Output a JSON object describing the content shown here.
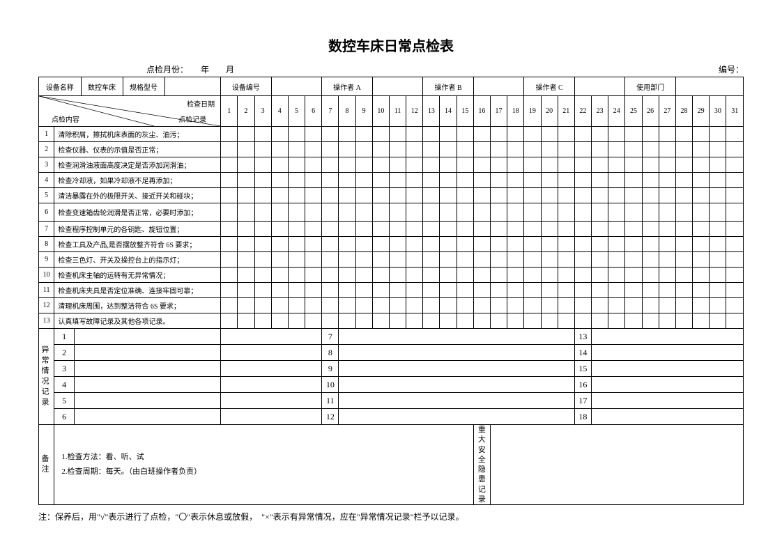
{
  "title": "数控车床日常点检表",
  "meta": {
    "month_label": "点检月份：　　年　　月",
    "serial_label": "编号："
  },
  "header": {
    "device_name_label": "设备名称",
    "device_name_value": "数控车床",
    "spec_model_label": "规格型号",
    "device_no_label": "设备编号",
    "operator_a": "操作者 A",
    "operator_b": "操作者 B",
    "operator_c": "操作者 C",
    "department": "使用部门"
  },
  "diagonal": {
    "top": "检查日期",
    "left": "点检内容",
    "bottom": "点检记录"
  },
  "days": [
    "1",
    "2",
    "3",
    "4",
    "5",
    "6",
    "7",
    "8",
    "9",
    "10",
    "11",
    "12",
    "13",
    "14",
    "15",
    "16",
    "17",
    "18",
    "19",
    "20",
    "21",
    "22",
    "23",
    "24",
    "25",
    "26",
    "27",
    "28",
    "29",
    "30",
    "31"
  ],
  "items": [
    "清除积屑，擦拭机床表面的灰尘、油污；",
    "检查仪器、仪表的示值是否正常；",
    "检查润滑油液面高度决定是否添加润滑油；",
    "检查冷却液，如果冷却液不足再添加；",
    "清洁暴露在外的极限开关、接近开关和碰块；",
    "检查变速箱齿轮润滑是否正常，必要时添加；",
    "检查程序控制单元的各钥匙、旋钮位置；",
    "检查工具及产品,是否摆放整齐符合 6S 要求；",
    "检查三色灯、开关及操控台上的指示灯；",
    "检查机床主轴的运转有无异常情况；",
    "检查机床夹具是否定位准确、连接牢固可靠；",
    "清理机床周围，达到整洁符合 6S 要求；",
    "认真填写故障记录及其他各项记录。"
  ],
  "anomaly": {
    "label": "异常情况记录",
    "cols": [
      [
        "1",
        "2",
        "3",
        "4",
        "5",
        "6"
      ],
      [
        "7",
        "8",
        "9",
        "10",
        "11",
        "12"
      ],
      [
        "13",
        "14",
        "15",
        "16",
        "17",
        "18"
      ]
    ]
  },
  "remark": {
    "label": "备注",
    "line1": "1.检查方法：看、听、试",
    "line2": "2.检查周期：每天。（由白班操作者负责）"
  },
  "safety_label": "重大安全隐患记录",
  "note": "注：保养后，用\"√\"表示进行了点检，\"〇\"表示休息或放假，　\"×\"表示有异常情况，应在\"异常情况记录\"栏予以记录。",
  "style": {
    "font_family": "SimSun",
    "title_fontsize": 20,
    "body_fontsize": 11,
    "border_color": "#000000",
    "background_color": "#ffffff"
  }
}
